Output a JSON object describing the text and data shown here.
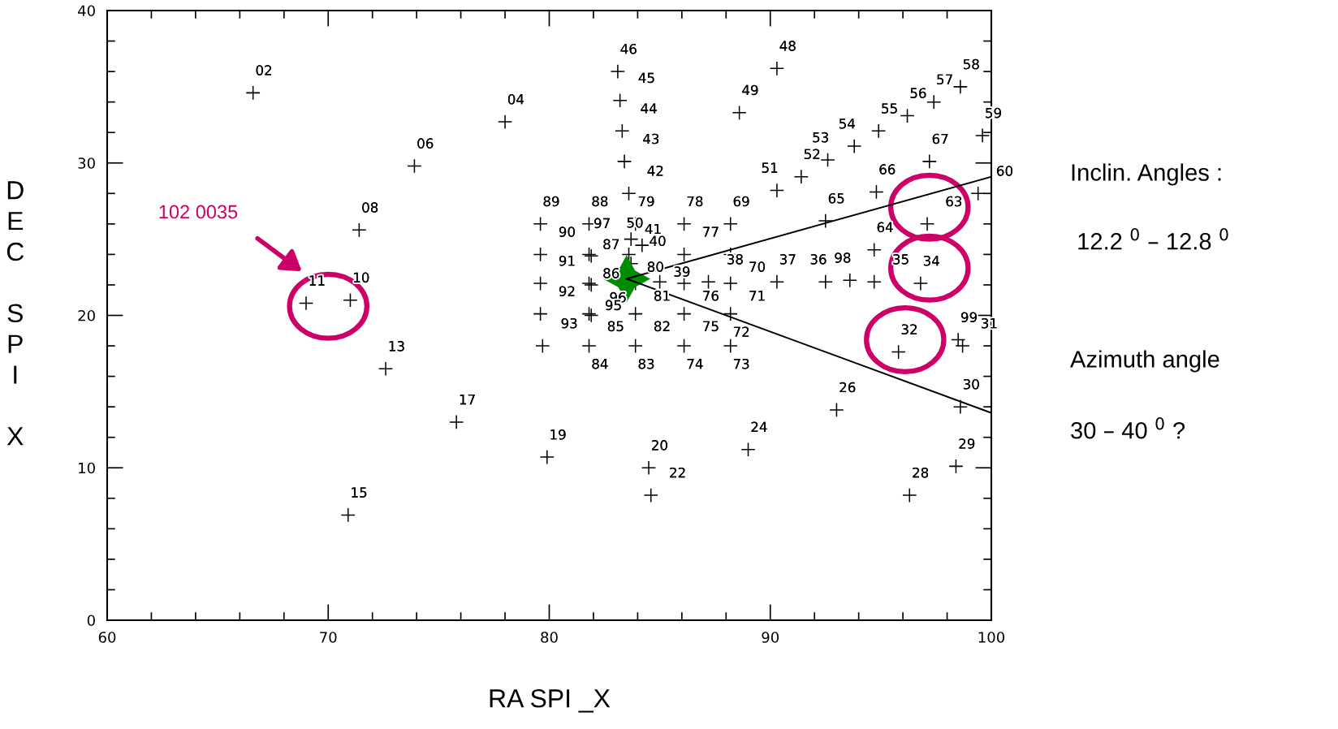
{
  "chart_data": {
    "type": "scatter",
    "xlabel": "RA SPI _X",
    "ylabel": "DEC SPI X",
    "xlim": [
      60,
      100
    ],
    "ylim": [
      0,
      40
    ],
    "xticks": [
      60,
      {
        "value": 62,
        "label": null
      },
      {
        "value": 64,
        "label": null
      },
      {
        "value": 66,
        "label": null
      },
      {
        "value": 68,
        "label": null
      },
      70,
      {
        "value": 72,
        "label": null
      },
      {
        "value": 74,
        "label": null
      },
      {
        "value": 76,
        "label": null
      },
      {
        "value": 78,
        "label": null
      },
      80,
      {
        "value": 82,
        "label": null
      },
      {
        "value": 84,
        "label": null
      },
      {
        "value": 86,
        "label": null
      },
      {
        "value": 88,
        "label": null
      },
      90,
      {
        "value": 92,
        "label": null
      },
      {
        "value": 94,
        "label": null
      },
      {
        "value": 96,
        "label": null
      },
      {
        "value": 98,
        "label": null
      },
      100
    ],
    "yticks": [
      0,
      {
        "value": 2,
        "label": null
      },
      {
        "value": 4,
        "label": null
      },
      {
        "value": 6,
        "label": null
      },
      {
        "value": 8,
        "label": null
      },
      10,
      {
        "value": 12,
        "label": null
      },
      {
        "value": 14,
        "label": null
      },
      {
        "value": 16,
        "label": null
      },
      {
        "value": 18,
        "label": null
      },
      20,
      {
        "value": 22,
        "label": null
      },
      {
        "value": 24,
        "label": null
      },
      {
        "value": 26,
        "label": null
      },
      {
        "value": 28,
        "label": null
      },
      30,
      {
        "value": 32,
        "label": null
      },
      {
        "value": 34,
        "label": null
      },
      {
        "value": 36,
        "label": null
      },
      {
        "value": 38,
        "label": null
      },
      40
    ],
    "series": [
      {
        "marker": "cross",
        "color": "#000000",
        "x": [
          66.6,
          78.0,
          73.9,
          71.4,
          69.0,
          71.0,
          72.6,
          70.9,
          75.8,
          79.9,
          84.5,
          84.6,
          89.0,
          93.0,
          96.3,
          98.4,
          98.6,
          98.5,
          98.7,
          95.8,
          96.8,
          94.7,
          93.6,
          92.5,
          90.3,
          94.7,
          97.1,
          92.5,
          94.8,
          97.2,
          99.4,
          99.6,
          98.6,
          97.4,
          96.2,
          94.9,
          93.8,
          92.6,
          91.4,
          90.3,
          90.3,
          88.6,
          83.1,
          83.2,
          83.3,
          83.4,
          83.6,
          79.6,
          79.6,
          79.6,
          79.6,
          79.7,
          81.8,
          81.8,
          81.9,
          81.8,
          81.9,
          81.8,
          81.9,
          81.8,
          83.9,
          83.7,
          83.6,
          84.2,
          83.7,
          83.9,
          83.9,
          83.9,
          85.0,
          86.1,
          86.1,
          86.1,
          86.1,
          86.1,
          87.2,
          88.2,
          88.2,
          88.2,
          88.2,
          88.2
        ],
        "values": [
          34.6,
          32.7,
          29.8,
          25.6,
          20.8,
          21.0,
          16.5,
          6.9,
          13.0,
          10.7,
          10.0,
          8.2,
          11.2,
          13.8,
          8.2,
          10.1,
          14.0,
          18.4,
          18.0,
          17.6,
          22.1,
          22.2,
          22.3,
          22.2,
          22.2,
          24.3,
          26.0,
          26.2,
          28.1,
          30.1,
          28.0,
          31.8,
          35.0,
          34.0,
          33.1,
          32.1,
          31.1,
          30.2,
          29.1,
          28.2,
          36.2,
          33.3,
          36.0,
          34.1,
          32.1,
          30.1,
          28.0,
          26.0,
          24.0,
          22.1,
          20.1,
          18.0,
          26.0,
          24.0,
          23.9,
          22.1,
          22.0,
          20.1,
          20.0,
          18.0,
          26.0,
          25.0,
          24.0,
          24.6,
          23.4,
          22.1,
          20.1,
          18.0,
          22.2,
          26.0,
          24.0,
          22.1,
          20.1,
          18.0,
          22.2,
          26.0,
          24.0,
          22.1,
          20.1,
          18.0
        ]
      },
      {
        "type": "line",
        "color": "#000000",
        "line_style": "solid",
        "x": [
          83.5,
          100
        ],
        "values": [
          22.4,
          29.1
        ]
      },
      {
        "type": "line",
        "color": "#000000",
        "line_style": "solid",
        "x": [
          83.5,
          100
        ],
        "values": [
          22.4,
          13.6
        ]
      },
      {
        "marker": "star",
        "color": "#008c00",
        "x": [
          83.5
        ],
        "values": [
          22.4
        ]
      }
    ],
    "annotations": [
      "102 0035",
      "Inclin. Angles :",
      " 12.2 $^{0}$ – 12.8 $^{0}$",
      "Azimuth angle",
      "30 – 40 $^{0}$ ?",
      {
        "text": "02",
        "x": 66.6,
        "y": 34.6
      },
      {
        "text": "04",
        "x": 78.0,
        "y": 32.7
      },
      {
        "text": "06",
        "x": 73.9,
        "y": 29.8
      },
      {
        "text": "08",
        "x": 71.4,
        "y": 25.6
      },
      {
        "text": "11",
        "x": 69.0,
        "y": 20.8
      },
      {
        "text": "10",
        "x": 71.0,
        "y": 21.0
      },
      {
        "text": "13",
        "x": 72.6,
        "y": 16.5
      },
      {
        "text": "15",
        "x": 70.9,
        "y": 6.9
      },
      {
        "text": "17",
        "x": 75.8,
        "y": 13.0
      },
      {
        "text": "19",
        "x": 79.9,
        "y": 10.7
      },
      {
        "text": "20",
        "x": 84.5,
        "y": 10.0
      },
      {
        "text": "22",
        "x": 84.6,
        "y": 8.2
      },
      {
        "text": "24",
        "x": 89.0,
        "y": 11.2
      },
      {
        "text": "26",
        "x": 93.0,
        "y": 13.8
      },
      {
        "text": "28",
        "x": 96.3,
        "y": 8.2
      },
      {
        "text": "29",
        "x": 98.4,
        "y": 10.1
      },
      {
        "text": "30",
        "x": 98.6,
        "y": 14.0
      },
      {
        "text": "99",
        "x": 98.5,
        "y": 18.4
      },
      {
        "text": "31",
        "x": 98.7,
        "y": 18.0
      },
      {
        "text": "32",
        "x": 95.8,
        "y": 17.6
      },
      {
        "text": "34",
        "x": 96.8,
        "y": 22.1
      },
      {
        "text": "35",
        "x": 94.7,
        "y": 22.2
      },
      {
        "text": "98",
        "x": 93.6,
        "y": 22.3
      },
      {
        "text": "36",
        "x": 92.5,
        "y": 22.2
      },
      {
        "text": "37",
        "x": 90.3,
        "y": 22.2
      },
      {
        "text": "64",
        "x": 94.7,
        "y": 24.3
      },
      {
        "text": "63",
        "x": 97.1,
        "y": 26.0
      },
      {
        "text": "65",
        "x": 92.5,
        "y": 26.2
      },
      {
        "text": "66",
        "x": 94.8,
        "y": 28.1
      },
      {
        "text": "67",
        "x": 97.2,
        "y": 30.1
      },
      {
        "text": "60",
        "x": 99.4,
        "y": 28.0
      },
      {
        "text": "59",
        "x": 99.6,
        "y": 31.8
      },
      {
        "text": "58",
        "x": 98.6,
        "y": 35.0
      },
      {
        "text": "57",
        "x": 97.4,
        "y": 34.0
      },
      {
        "text": "56",
        "x": 96.2,
        "y": 33.1
      },
      {
        "text": "55",
        "x": 94.9,
        "y": 32.1
      },
      {
        "text": "54",
        "x": 93.8,
        "y": 31.1
      },
      {
        "text": "53",
        "x": 92.6,
        "y": 30.2
      },
      {
        "text": "52",
        "x": 91.4,
        "y": 29.1
      },
      {
        "text": "51",
        "x": 90.3,
        "y": 28.2
      },
      {
        "text": "48",
        "x": 90.3,
        "y": 36.2
      },
      {
        "text": "49",
        "x": 88.6,
        "y": 33.3
      },
      {
        "text": "46",
        "x": 83.1,
        "y": 36.0
      },
      {
        "text": "45",
        "x": 83.2,
        "y": 34.1
      },
      {
        "text": "44",
        "x": 83.3,
        "y": 32.1
      },
      {
        "text": "43",
        "x": 83.4,
        "y": 30.1
      },
      {
        "text": "42",
        "x": 83.6,
        "y": 28.0
      },
      {
        "text": "89",
        "x": 79.6,
        "y": 26.0
      },
      {
        "text": "90",
        "x": 79.6,
        "y": 24.0
      },
      {
        "text": "91",
        "x": 79.6,
        "y": 22.1
      },
      {
        "text": "92",
        "x": 79.6,
        "y": 20.1
      },
      {
        "text": "93",
        "x": 79.7,
        "y": 18.0
      },
      {
        "text": "88",
        "x": 81.8,
        "y": 26.0
      },
      {
        "text": "87",
        "x": 81.8,
        "y": 24.0
      },
      {
        "text": "97",
        "x": 81.9,
        "y": 23.9
      },
      {
        "text": "86",
        "x": 81.8,
        "y": 22.1
      },
      {
        "text": "96",
        "x": 81.9,
        "y": 22.0
      },
      {
        "text": "85",
        "x": 81.8,
        "y": 20.1
      },
      {
        "text": "95",
        "x": 81.9,
        "y": 20.0
      },
      {
        "text": "84",
        "x": 81.8,
        "y": 18.0
      },
      {
        "text": "79",
        "x": 83.9,
        "y": 26.0
      },
      {
        "text": "41",
        "x": 83.7,
        "y": 25.0
      },
      {
        "text": "80",
        "x": 83.6,
        "y": 24.0
      },
      {
        "text": "50",
        "x": 84.2,
        "y": 24.6
      },
      {
        "text": "40",
        "x": 83.7,
        "y": 23.4
      },
      {
        "text": "81",
        "x": 83.9,
        "y": 22.1
      },
      {
        "text": "82",
        "x": 83.9,
        "y": 20.1
      },
      {
        "text": "83",
        "x": 83.9,
        "y": 18.0
      },
      {
        "text": "39",
        "x": 85.0,
        "y": 22.2
      },
      {
        "text": "78",
        "x": 86.1,
        "y": 26.0
      },
      {
        "text": "77",
        "x": 86.1,
        "y": 24.0
      },
      {
        "text": "76",
        "x": 86.1,
        "y": 22.1
      },
      {
        "text": "75",
        "x": 86.1,
        "y": 20.1
      },
      {
        "text": "74",
        "x": 86.1,
        "y": 18.0
      },
      {
        "text": "38",
        "x": 87.2,
        "y": 22.2
      },
      {
        "text": "69",
        "x": 88.2,
        "y": 26.0
      },
      {
        "text": "70",
        "x": 88.2,
        "y": 24.0
      },
      {
        "text": "71",
        "x": 88.2,
        "y": 22.1
      },
      {
        "text": "72",
        "x": 88.2,
        "y": 20.1
      },
      {
        "text": "73",
        "x": 88.2,
        "y": 18.0
      }
    ]
  }
}
